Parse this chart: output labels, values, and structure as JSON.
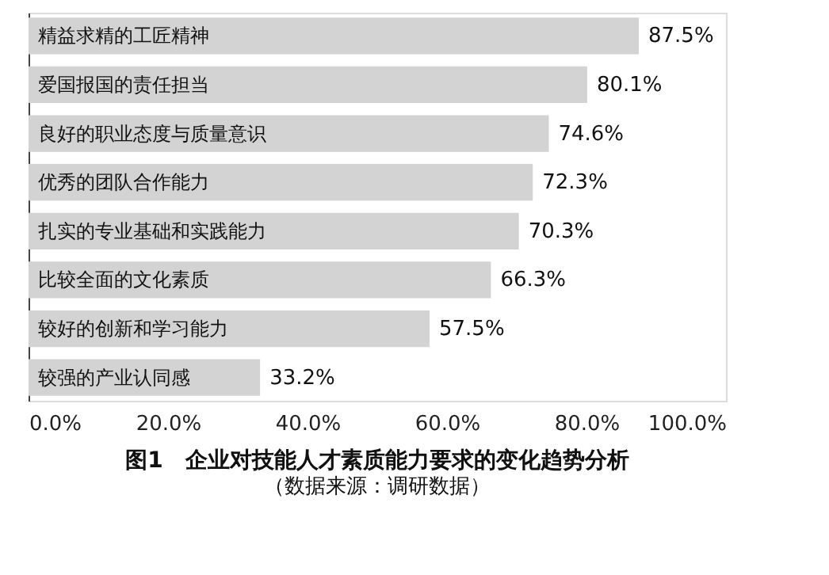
{
  "chart_data": {
    "type": "bar",
    "orientation": "horizontal",
    "title": "图1　企业对技能人才素质能力要求的变化趋势分析",
    "annotations": [
      "（数据来源：调研数据）"
    ],
    "categories": [
      "精益求精的工匠精神",
      "爱国报国的责任担当",
      "良好的职业态度与质量意识",
      "优秀的团队合作能力",
      "扎实的专业基础和实践能力",
      "比较全面的文化素质",
      "较好的创新和学习能力",
      "较强的产业认同感"
    ],
    "values": [
      87.5,
      80.1,
      74.6,
      72.3,
      70.3,
      66.3,
      57.5,
      33.2
    ],
    "value_labels": [
      "87.5%",
      "80.1%",
      "74.6%",
      "72.3%",
      "70.3%",
      "66.3%",
      "57.5%",
      "33.2%"
    ],
    "color": "#d3d3d3",
    "xlim": [
      0,
      100
    ],
    "xticks": [
      {
        "value": 0,
        "label": "0.0%"
      },
      {
        "value": 20,
        "label": "20.0%"
      },
      {
        "value": 40,
        "label": "40.0%"
      },
      {
        "value": 60,
        "label": "60.0%"
      },
      {
        "value": 80,
        "label": "80.0%"
      },
      {
        "value": 100,
        "label": "100.0%"
      }
    ],
    "tick_labels": "x",
    "grid": false
  }
}
